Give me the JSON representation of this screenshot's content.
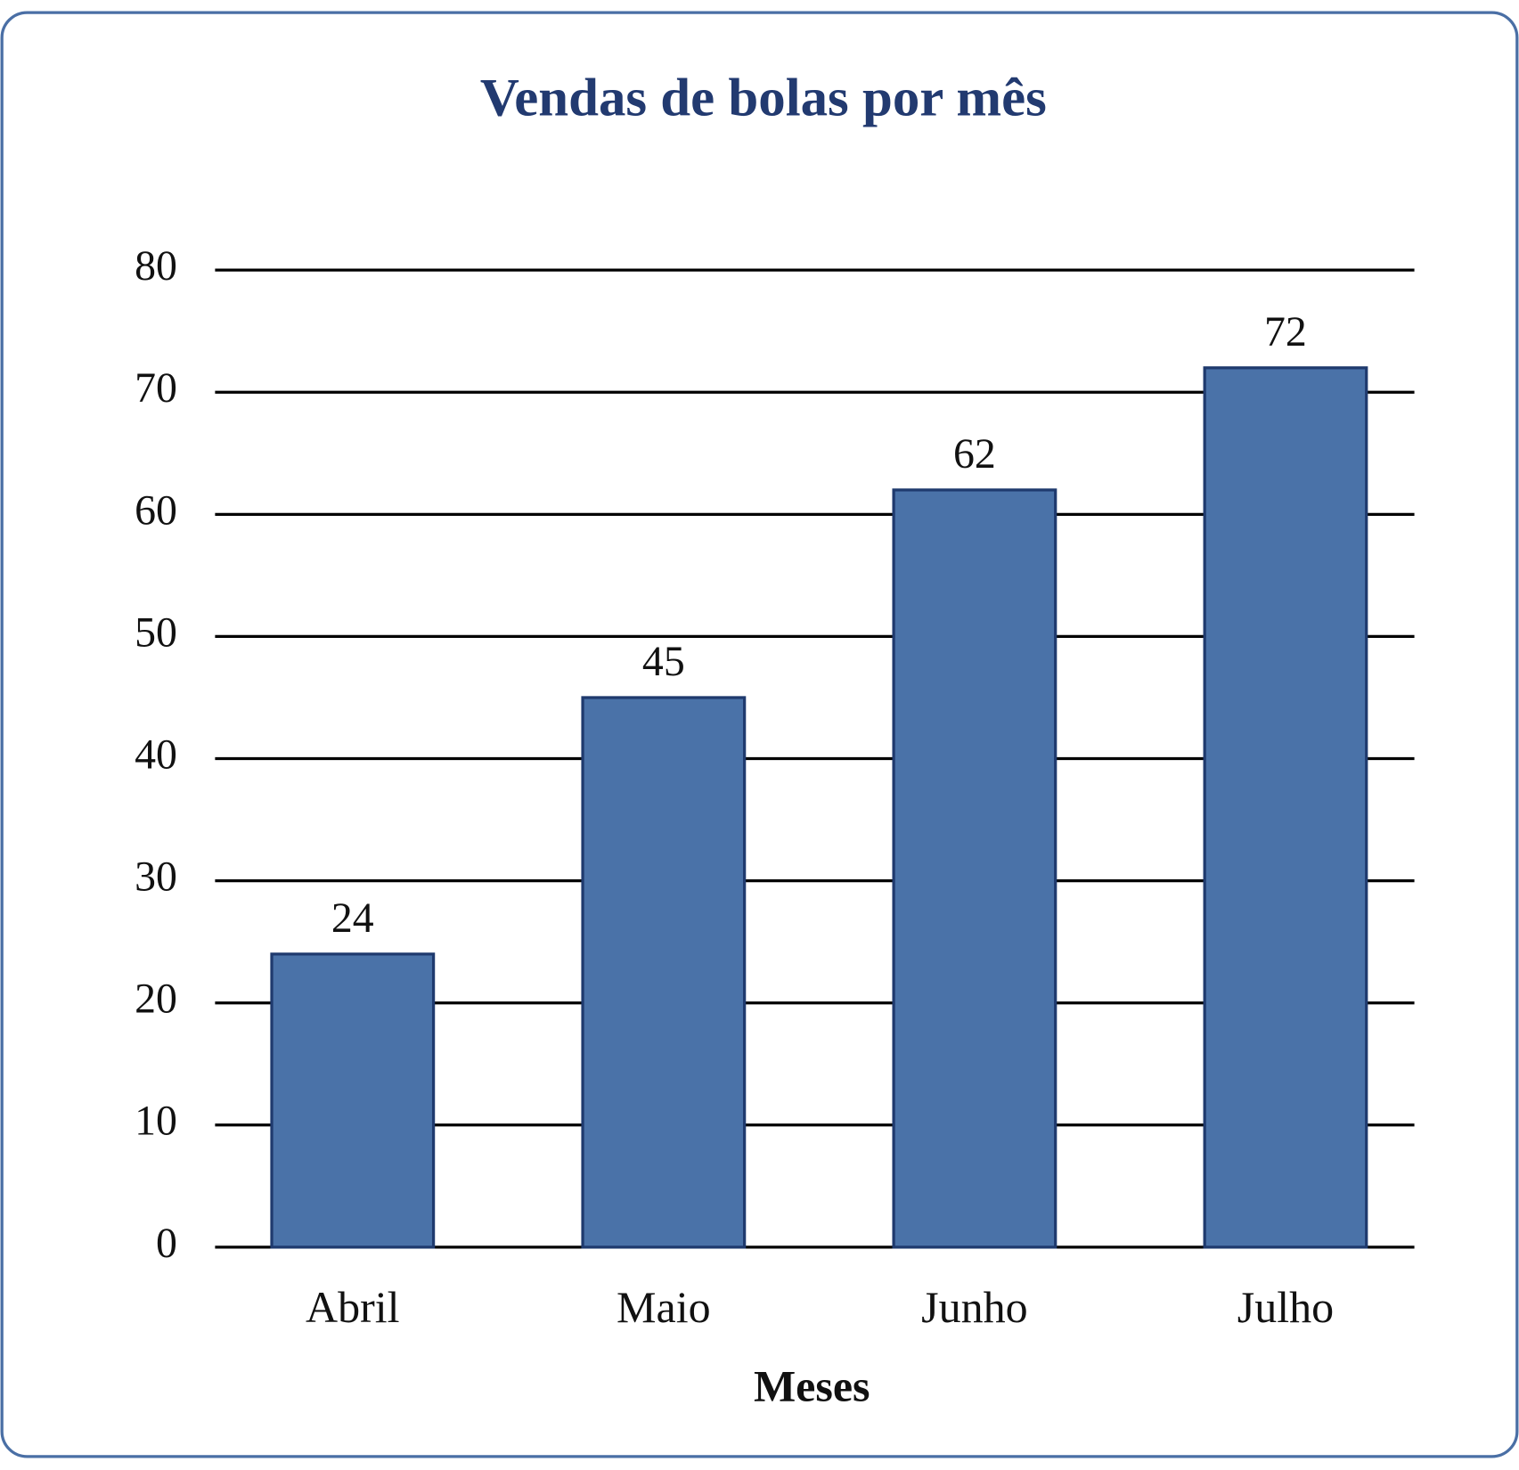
{
  "chart_data": {
    "type": "bar",
    "title": "Vendas de bolas por mês",
    "x_label": "Meses",
    "categories": [
      "Abril",
      "Maio",
      "Junho",
      "Julho"
    ],
    "values": [
      24,
      45,
      62,
      72
    ],
    "color": "#4a72a8",
    "ylim": [
      0,
      80
    ],
    "yticks": [
      0,
      10,
      20,
      30,
      40,
      50,
      60,
      70,
      80
    ],
    "grid": true
  }
}
